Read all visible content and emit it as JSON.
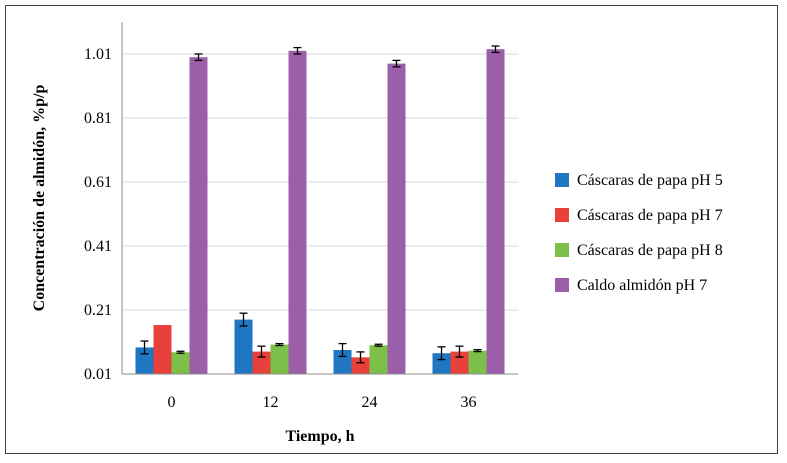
{
  "chart_data": {
    "type": "bar",
    "xlabel": "Tiempo, h",
    "ylabel": "Concentración de almidón, %p/p",
    "categories": [
      "0",
      "12",
      "24",
      "36"
    ],
    "y_ticks": [
      "0.01",
      "0.21",
      "0.41",
      "0.61",
      "0.81",
      "1.01"
    ],
    "ylim": [
      0.01,
      1.11
    ],
    "grid": true,
    "legend_position": "right",
    "series": [
      {
        "name": "Cáscaras de papa pH 5",
        "color": "#1f77c4",
        "values": [
          0.093,
          0.18,
          0.085,
          0.075
        ],
        "errors": [
          0.02,
          0.02,
          0.02,
          0.02
        ]
      },
      {
        "name": "Cáscaras de papa pH 7",
        "color": "#e8403a",
        "values": [
          0.163,
          0.08,
          0.062,
          0.08
        ],
        "errors": [
          0,
          0.017,
          0.017,
          0.017
        ]
      },
      {
        "name": "Cáscaras de papa pH 8",
        "color": "#7cc04a",
        "values": [
          0.078,
          0.102,
          0.1,
          0.083
        ],
        "errors": [
          0.003,
          0.003,
          0.003,
          0.003
        ]
      },
      {
        "name": "Caldo almidón pH 7",
        "color": "#9b5ea8",
        "values": [
          1.0,
          1.02,
          0.98,
          1.025
        ],
        "errors": [
          0.01,
          0.01,
          0.01,
          0.01
        ]
      }
    ]
  }
}
